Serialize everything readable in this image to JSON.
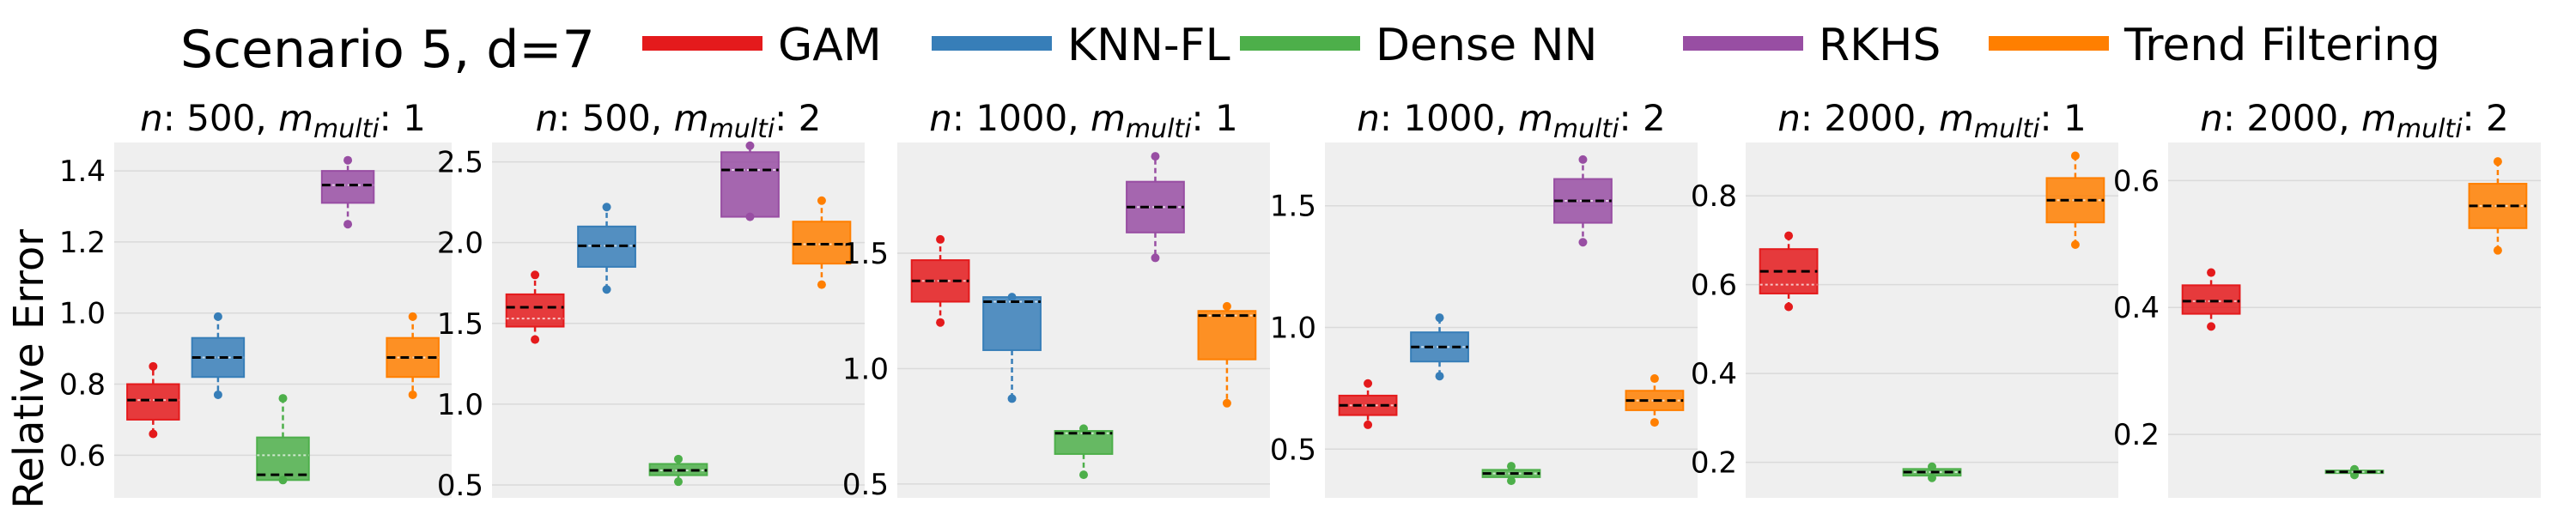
{
  "figure_title": "Scenario 5, d=7",
  "ylabel": "Relative Error",
  "legend": [
    {
      "name": "GAM",
      "color": "#e41a1c"
    },
    {
      "name": "KNN-FL",
      "color": "#377eb8"
    },
    {
      "name": "Dense NN",
      "color": "#4daf4a"
    },
    {
      "name": "RKHS",
      "color": "#984ea3"
    },
    {
      "name": "Trend Filtering",
      "color": "#ff7f00"
    }
  ],
  "chart_data": [
    {
      "type": "box",
      "title_n": "500",
      "title_m": "1",
      "ylim": [
        0.48,
        1.48
      ],
      "yticks": [
        0.6,
        0.8,
        1.0,
        1.2,
        1.4
      ],
      "ytick_labels": [
        "0.6",
        "0.8",
        "1.0",
        "1.2",
        "1.4"
      ],
      "boxes": [
        {
          "method": "GAM",
          "color": "#e41a1c",
          "whislo": 0.66,
          "q1": 0.7,
          "median": 0.755,
          "mean": 0.755,
          "q3": 0.8,
          "whishi": 0.85
        },
        {
          "method": "KNN-FL",
          "color": "#377eb8",
          "whislo": 0.77,
          "q1": 0.82,
          "median": 0.875,
          "mean": 0.875,
          "q3": 0.93,
          "whishi": 0.99
        },
        {
          "method": "Dense NN",
          "color": "#4daf4a",
          "whislo": 0.53,
          "q1": 0.53,
          "median": 0.6,
          "mean": 0.545,
          "q3": 0.65,
          "whishi": 0.76
        },
        {
          "method": "RKHS",
          "color": "#984ea3",
          "whislo": 1.25,
          "q1": 1.31,
          "median": 1.36,
          "mean": 1.36,
          "q3": 1.4,
          "whishi": 1.43
        },
        {
          "method": "Trend Filtering",
          "color": "#ff7f00",
          "whislo": 0.77,
          "q1": 0.82,
          "median": 0.875,
          "mean": 0.875,
          "q3": 0.93,
          "whishi": 0.99
        }
      ]
    },
    {
      "type": "box",
      "title_n": "500",
      "title_m": "2",
      "ylim": [
        0.42,
        2.62
      ],
      "yticks": [
        0.5,
        1.0,
        1.5,
        2.0,
        2.5
      ],
      "ytick_labels": [
        "0.5",
        "1.0",
        "1.5",
        "2.0",
        "2.5"
      ],
      "boxes": [
        {
          "method": "GAM",
          "color": "#e41a1c",
          "whislo": 1.4,
          "q1": 1.48,
          "median": 1.53,
          "mean": 1.6,
          "q3": 1.68,
          "whishi": 1.8
        },
        {
          "method": "KNN-FL",
          "color": "#377eb8",
          "whislo": 1.71,
          "q1": 1.85,
          "median": 1.98,
          "mean": 1.98,
          "q3": 2.1,
          "whishi": 2.22
        },
        {
          "method": "Dense NN",
          "color": "#4daf4a",
          "whislo": 0.52,
          "q1": 0.56,
          "median": 0.59,
          "mean": 0.59,
          "q3": 0.63,
          "whishi": 0.66
        },
        {
          "method": "RKHS",
          "color": "#984ea3",
          "whislo": 2.16,
          "q1": 2.16,
          "median": 2.45,
          "mean": 2.45,
          "q3": 2.56,
          "whishi": 2.6
        },
        {
          "method": "Trend Filtering",
          "color": "#ff7f00",
          "whislo": 1.74,
          "q1": 1.87,
          "median": 1.99,
          "mean": 1.99,
          "q3": 2.13,
          "whishi": 2.26
        }
      ]
    },
    {
      "type": "box",
      "title_n": "1000",
      "title_m": "1",
      "ylim": [
        0.44,
        1.98
      ],
      "yticks": [
        0.5,
        1.0,
        1.5
      ],
      "ytick_labels": [
        "0.5",
        "1.0",
        "1.5"
      ],
      "boxes": [
        {
          "method": "GAM",
          "color": "#e41a1c",
          "whislo": 1.2,
          "q1": 1.29,
          "median": 1.38,
          "mean": 1.38,
          "q3": 1.47,
          "whishi": 1.56
        },
        {
          "method": "KNN-FL",
          "color": "#377eb8",
          "whislo": 0.87,
          "q1": 1.08,
          "median": 1.29,
          "mean": 1.29,
          "q3": 1.31,
          "whishi": 1.31
        },
        {
          "method": "Dense NN",
          "color": "#4daf4a",
          "whislo": 0.54,
          "q1": 0.63,
          "median": 0.72,
          "mean": 0.72,
          "q3": 0.73,
          "whishi": 0.74
        },
        {
          "method": "RKHS",
          "color": "#984ea3",
          "whislo": 1.48,
          "q1": 1.59,
          "median": 1.7,
          "mean": 1.7,
          "q3": 1.81,
          "whishi": 1.92
        },
        {
          "method": "Trend Filtering",
          "color": "#ff7f00",
          "whislo": 0.85,
          "q1": 1.04,
          "median": 1.23,
          "mean": 1.23,
          "q3": 1.25,
          "whishi": 1.27
        }
      ]
    },
    {
      "type": "box",
      "title_n": "1000",
      "title_m": "2",
      "ylim": [
        0.3,
        1.76
      ],
      "yticks": [
        0.5,
        1.0,
        1.5
      ],
      "ytick_labels": [
        "0.5",
        "1.0",
        "1.5"
      ],
      "boxes": [
        {
          "method": "GAM",
          "color": "#e41a1c",
          "whislo": 0.6,
          "q1": 0.64,
          "median": 0.68,
          "mean": 0.68,
          "q3": 0.72,
          "whishi": 0.77
        },
        {
          "method": "KNN-FL",
          "color": "#377eb8",
          "whislo": 0.8,
          "q1": 0.86,
          "median": 0.92,
          "mean": 0.92,
          "q3": 0.98,
          "whishi": 1.04
        },
        {
          "method": "Dense NN",
          "color": "#4daf4a",
          "whislo": 0.37,
          "q1": 0.385,
          "median": 0.4,
          "mean": 0.4,
          "q3": 0.415,
          "whishi": 0.43
        },
        {
          "method": "RKHS",
          "color": "#984ea3",
          "whislo": 1.35,
          "q1": 1.43,
          "median": 1.52,
          "mean": 1.52,
          "q3": 1.61,
          "whishi": 1.69
        },
        {
          "method": "Trend Filtering",
          "color": "#ff7f00",
          "whislo": 0.61,
          "q1": 0.66,
          "median": 0.7,
          "mean": 0.7,
          "q3": 0.74,
          "whishi": 0.79
        }
      ]
    },
    {
      "type": "box",
      "title_n": "2000",
      "title_m": "1",
      "ylim": [
        0.12,
        0.92
      ],
      "yticks": [
        0.2,
        0.4,
        0.6,
        0.8
      ],
      "ytick_labels": [
        "0.2",
        "0.4",
        "0.6",
        "0.8"
      ],
      "boxes": [
        {
          "method": "GAM",
          "color": "#e41a1c",
          "whislo": 0.55,
          "q1": 0.58,
          "median": 0.6,
          "mean": 0.63,
          "q3": 0.68,
          "whishi": 0.71
        },
        {
          "method": "Dense NN",
          "color": "#4daf4a",
          "whislo": 0.165,
          "q1": 0.17,
          "median": 0.178,
          "mean": 0.178,
          "q3": 0.185,
          "whishi": 0.19
        },
        {
          "method": "Trend Filtering",
          "color": "#ff7f00",
          "whislo": 0.69,
          "q1": 0.74,
          "median": 0.79,
          "mean": 0.79,
          "q3": 0.84,
          "whishi": 0.89
        }
      ]
    },
    {
      "type": "box",
      "title_n": "2000",
      "title_m": "2",
      "ylim": [
        0.1,
        0.66
      ],
      "yticks": [
        0.2,
        0.4,
        0.6
      ],
      "ytick_labels": [
        "0.2",
        "0.4",
        "0.6"
      ],
      "boxes": [
        {
          "method": "GAM",
          "color": "#e41a1c",
          "whislo": 0.37,
          "q1": 0.39,
          "median": 0.41,
          "mean": 0.41,
          "q3": 0.435,
          "whishi": 0.455
        },
        {
          "method": "Dense NN",
          "color": "#4daf4a",
          "whislo": 0.136,
          "q1": 0.139,
          "median": 0.141,
          "mean": 0.141,
          "q3": 0.143,
          "whishi": 0.145
        },
        {
          "method": "Trend Filtering",
          "color": "#ff7f00",
          "whislo": 0.49,
          "q1": 0.525,
          "median": 0.56,
          "mean": 0.56,
          "q3": 0.595,
          "whishi": 0.63
        }
      ]
    }
  ]
}
